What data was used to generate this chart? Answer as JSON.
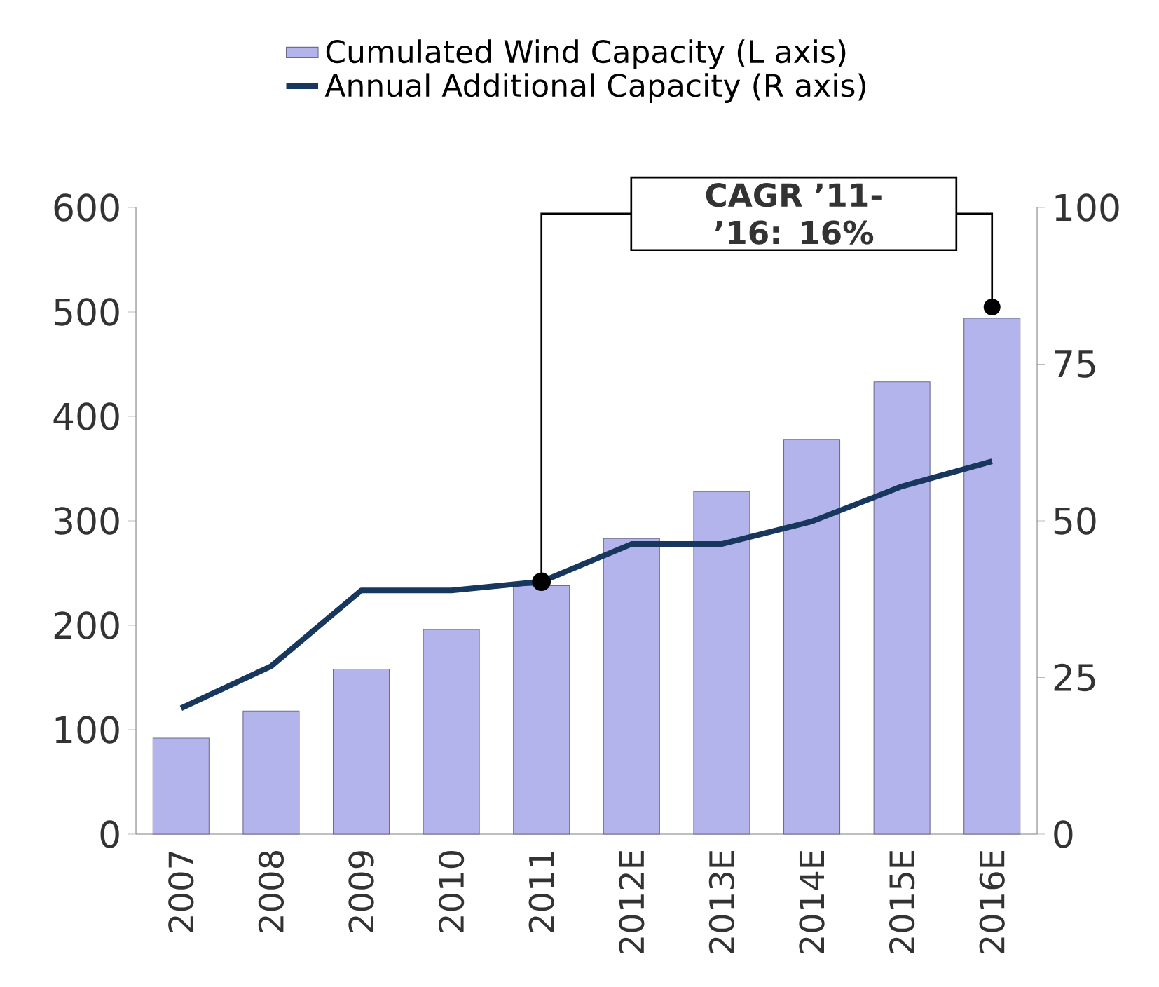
{
  "chart_data": {
    "type": "bar",
    "categories": [
      "2007",
      "2008",
      "2009",
      "2010",
      "2011",
      "2012E",
      "2013E",
      "2014E",
      "2015E",
      "2016E"
    ],
    "series": [
      {
        "name": "Cumulated Wind Capacity (L axis)",
        "color": "#b4b4ec",
        "values": [
          92,
          118,
          158,
          196,
          238,
          283,
          328,
          378,
          433,
          494
        ]
      },
      {
        "name": "Annual Additional Capacity (R axis)",
        "type": "line",
        "axis": "y2",
        "color": "#17375e",
        "values": [
          20.1,
          26.8,
          38.9,
          38.9,
          40.3,
          46.3,
          46.3,
          49.9,
          55.5,
          59.5
        ]
      }
    ],
    "ylim": [
      0,
      600
    ],
    "yticks": [
      0,
      100,
      200,
      300,
      400,
      500,
      600
    ],
    "y2lim": [
      0,
      100
    ],
    "y2ticks": [
      0,
      25,
      50,
      75,
      100
    ],
    "legend": "top",
    "annotations": [
      "CAGR ’11-’16: 16%"
    ]
  }
}
